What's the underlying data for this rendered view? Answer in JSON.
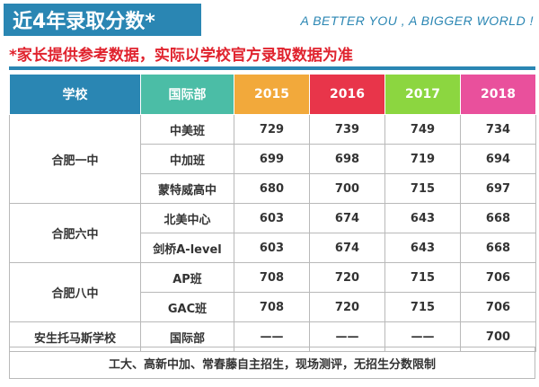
{
  "title": "近4年录取分数*",
  "slogan": "A BETTER YOU , A BIGGER WORLD !",
  "note": "*家长提供参考数据，实际以学校官方录取数据为准",
  "colors": {
    "brand": "#2a86b3",
    "note": "#e0232e",
    "header_school": "#2a86b3",
    "header_program": "#4bbda6",
    "year_2015": "#f2a93b",
    "year_2016": "#e8354a",
    "year_2017": "#8cd640",
    "year_2018": "#e9509c"
  },
  "table": {
    "headers": {
      "school": "学校",
      "program": "国际部",
      "years": [
        "2015",
        "2016",
        "2017",
        "2018"
      ]
    },
    "groups": [
      {
        "school": "合肥一中",
        "rows": [
          {
            "program": "中美班",
            "scores": [
              "729",
              "739",
              "749",
              "734"
            ]
          },
          {
            "program": "中加班",
            "scores": [
              "699",
              "698",
              "719",
              "694"
            ]
          },
          {
            "program": "蒙特威高中",
            "scores": [
              "680",
              "700",
              "715",
              "697"
            ]
          }
        ]
      },
      {
        "school": "合肥六中",
        "rows": [
          {
            "program": "北美中心",
            "scores": [
              "603",
              "674",
              "643",
              "668"
            ]
          },
          {
            "program": "剑桥A-level",
            "scores": [
              "603",
              "674",
              "643",
              "668"
            ]
          }
        ]
      },
      {
        "school": "合肥八中",
        "rows": [
          {
            "program": "AP班",
            "scores": [
              "708",
              "720",
              "715",
              "706"
            ]
          },
          {
            "program": "GAC班",
            "scores": [
              "708",
              "720",
              "715",
              "706"
            ]
          }
        ]
      },
      {
        "school": "安生托马斯学校",
        "rows": [
          {
            "program": "国际部",
            "scores": [
              "——",
              "——",
              "——",
              "700"
            ]
          }
        ]
      }
    ],
    "footnote": "工大、高新中加、常春藤自主招生，现场测评，无招生分数限制"
  }
}
